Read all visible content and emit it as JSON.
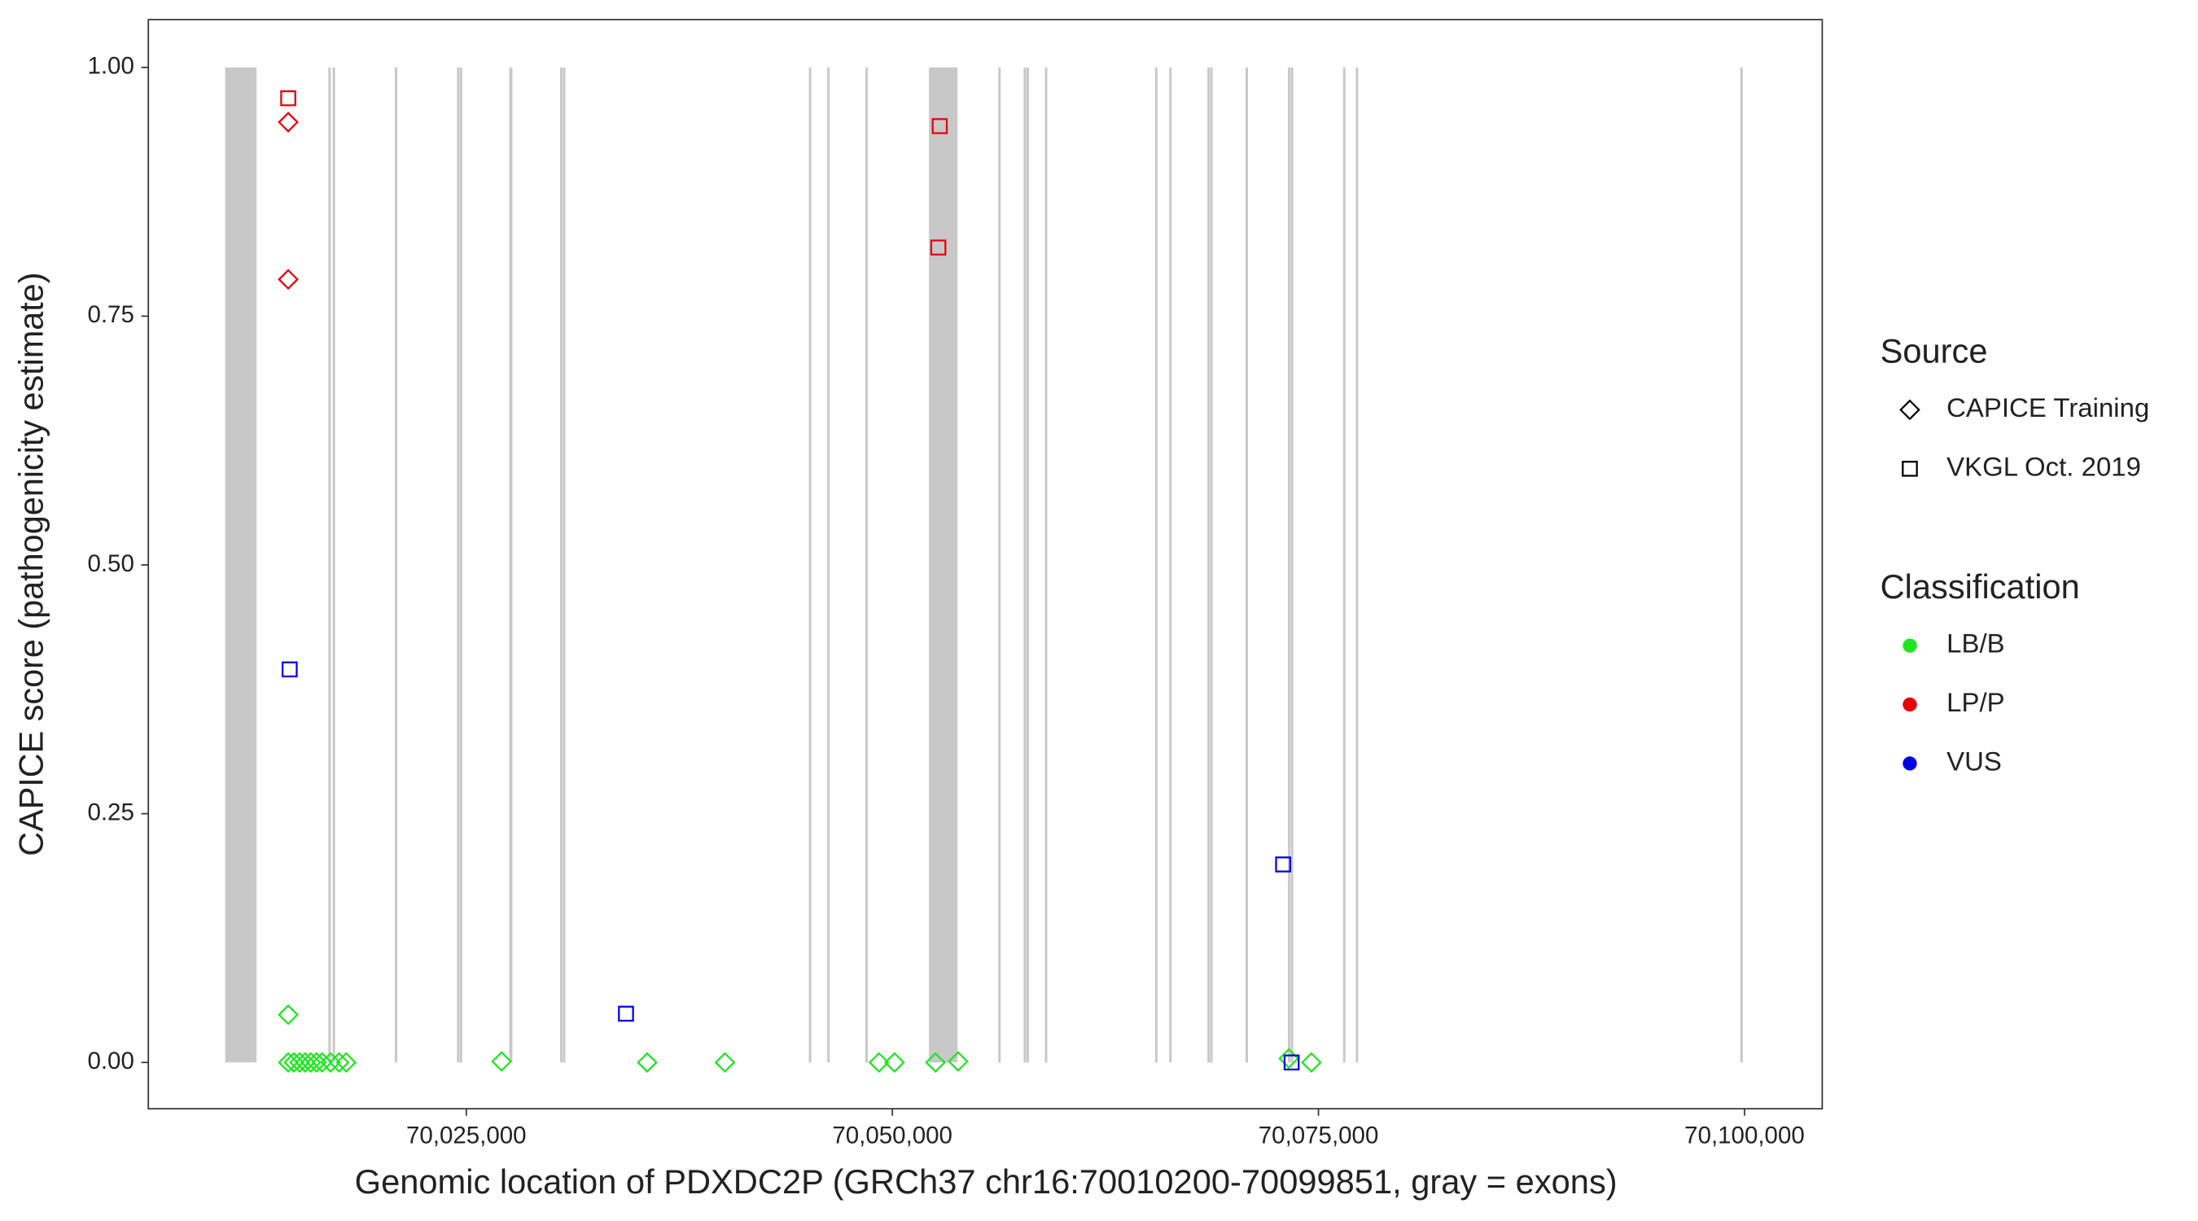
{
  "chart_data": {
    "type": "scatter",
    "x_label": "Genomic location of PDXDC2P (GRCh37 chr16:70010200-70099851, gray = exons)",
    "y_label": "CAPICE score (pathogenicity estimate)",
    "xlim": [
      70006343,
      70104560
    ],
    "ylim": [
      -0.0465,
      1.048
    ],
    "xticks": [
      {
        "value": 70025000,
        "label": "70,025,000"
      },
      {
        "value": 70050000,
        "label": "70,050,000"
      },
      {
        "value": 70075000,
        "label": "70,075,000"
      },
      {
        "value": 70100000,
        "label": "70,100,000"
      }
    ],
    "yticks": [
      {
        "value": 0,
        "label": "0.00"
      },
      {
        "value": 0.25,
        "label": "0.25"
      },
      {
        "value": 0.5,
        "label": "0.50"
      },
      {
        "value": 0.75,
        "label": "0.75"
      },
      {
        "value": 1,
        "label": "1.00"
      }
    ],
    "exon_color": "#c8c8c8",
    "exons": [
      [
        70010904,
        70012645
      ],
      [
        70016957,
        70017000
      ],
      [
        70017206,
        70017250
      ],
      [
        70020854,
        70020900
      ],
      [
        70024502,
        70024545
      ],
      [
        70024668,
        70024710
      ],
      [
        70027571,
        70027654
      ],
      [
        70030556,
        70030600
      ],
      [
        70030721,
        70030765
      ],
      [
        70045150,
        70045190
      ],
      [
        70046228,
        70046270
      ],
      [
        70048467,
        70048510
      ],
      [
        70052198,
        70053773
      ],
      [
        70056261,
        70056305
      ],
      [
        70057753,
        70057795
      ],
      [
        70057919,
        70057960
      ],
      [
        70058997,
        70059040
      ],
      [
        70065465,
        70065505
      ],
      [
        70066294,
        70066335
      ],
      [
        70068533,
        70068575
      ],
      [
        70068699,
        70068740
      ],
      [
        70070772,
        70070815
      ],
      [
        70073260,
        70073300
      ],
      [
        70073426,
        70073470
      ],
      [
        70076493,
        70076535
      ],
      [
        70077240,
        70077280
      ],
      [
        70099800,
        70099851
      ]
    ],
    "source_title": "Source",
    "sources": [
      {
        "name": "CAPICE Training",
        "shape": "diamond"
      },
      {
        "name": "VKGL Oct. 2019",
        "shape": "square"
      }
    ],
    "class_title": "Classification",
    "classes": [
      {
        "name": "LB/B",
        "color": "#1ee61e"
      },
      {
        "name": "LP/P",
        "color": "#e8000b"
      },
      {
        "name": "VUS",
        "color": "#0000e6"
      }
    ],
    "points": [
      {
        "x": 70014552,
        "y": 0.945,
        "source": 0,
        "class": 1
      },
      {
        "x": 70014552,
        "y": 0.787,
        "source": 0,
        "class": 1
      },
      {
        "x": 70014552,
        "y": 0.969,
        "source": 1,
        "class": 1
      },
      {
        "x": 70052778,
        "y": 0.941,
        "source": 1,
        "class": 1
      },
      {
        "x": 70052695,
        "y": 0.819,
        "source": 1,
        "class": 1
      },
      {
        "x": 70014635,
        "y": 0.395,
        "source": 1,
        "class": 2
      },
      {
        "x": 70034370,
        "y": 0.049,
        "source": 1,
        "class": 2
      },
      {
        "x": 70072928,
        "y": 0.199,
        "source": 1,
        "class": 2
      },
      {
        "x": 70014552,
        "y": 0.048,
        "source": 0,
        "class": 0
      },
      {
        "x": 70014552,
        "y": 0,
        "source": 0,
        "class": 0
      },
      {
        "x": 70014884,
        "y": 0,
        "source": 0,
        "class": 0
      },
      {
        "x": 70015216,
        "y": 0,
        "source": 0,
        "class": 0
      },
      {
        "x": 70015547,
        "y": 0,
        "source": 0,
        "class": 0
      },
      {
        "x": 70015879,
        "y": 0,
        "source": 0,
        "class": 0
      },
      {
        "x": 70016210,
        "y": 0,
        "source": 0,
        "class": 0
      },
      {
        "x": 70016542,
        "y": 0,
        "source": 0,
        "class": 0
      },
      {
        "x": 70017040,
        "y": 0,
        "source": 0,
        "class": 0
      },
      {
        "x": 70017537,
        "y": 0,
        "source": 0,
        "class": 0
      },
      {
        "x": 70017952,
        "y": 0,
        "source": 0,
        "class": 0
      },
      {
        "x": 70027073,
        "y": 0.001,
        "source": 0,
        "class": 0
      },
      {
        "x": 70035614,
        "y": 0,
        "source": 0,
        "class": 0
      },
      {
        "x": 70040174,
        "y": 0,
        "source": 0,
        "class": 0
      },
      {
        "x": 70049213,
        "y": 0,
        "source": 0,
        "class": 0
      },
      {
        "x": 70050125,
        "y": 0,
        "source": 0,
        "class": 0
      },
      {
        "x": 70052530,
        "y": 0,
        "source": 0,
        "class": 0
      },
      {
        "x": 70053856,
        "y": 0.001,
        "source": 0,
        "class": 0
      },
      {
        "x": 70073260,
        "y": 0.004,
        "source": 0,
        "class": 0
      },
      {
        "x": 70074587,
        "y": 0,
        "source": 0,
        "class": 0
      },
      {
        "x": 70073426,
        "y": 0,
        "source": 1,
        "class": 2
      }
    ]
  }
}
